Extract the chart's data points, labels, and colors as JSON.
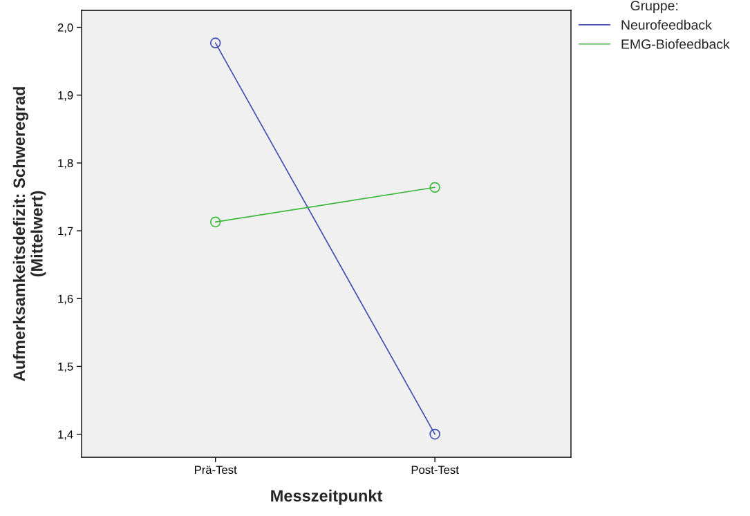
{
  "chart_data": {
    "type": "line",
    "xlabel": "Messzeitpunkt",
    "ylabel": "Aufmerksamkeitsdefizit: Schweregrad\n(Mittelwert)",
    "legend_title": "Gruppe:",
    "categories": [
      "Prä-Test",
      "Post-Test"
    ],
    "series": [
      {
        "name": "Neurofeedback",
        "color": "#3f4db3",
        "values": [
          1.977,
          1.4
        ]
      },
      {
        "name": "EMG-Biofeedback",
        "color": "#3cb83c",
        "values": [
          1.713,
          1.764
        ]
      }
    ],
    "ylim": [
      1.366,
      2.025
    ],
    "yticks": [
      {
        "value": 1.4,
        "label": "1,4"
      },
      {
        "value": 1.5,
        "label": "1,5"
      },
      {
        "value": 1.6,
        "label": "1,6"
      },
      {
        "value": 1.7,
        "label": "1,7"
      },
      {
        "value": 1.8,
        "label": "1,8"
      },
      {
        "value": 1.9,
        "label": "1,9"
      },
      {
        "value": 2.0,
        "label": "2,0"
      }
    ],
    "marker": "circle",
    "line_style": "solid",
    "grid": false,
    "legend": "top right"
  }
}
